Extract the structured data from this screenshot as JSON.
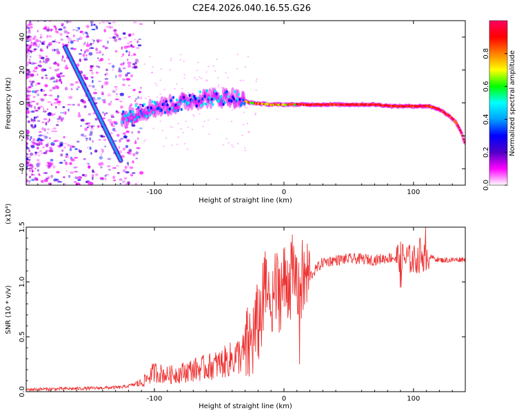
{
  "title": "C2E4.2026.040.16.55.G26",
  "chart_data": [
    {
      "type": "heatmap",
      "name": "spectrogram",
      "xlabel": "Height of straight line (km)",
      "ylabel": "Frequency (Hz)",
      "xlim": [
        -199,
        140
      ],
      "ylim": [
        -50,
        50
      ],
      "xticks": [
        "-100",
        "0",
        "100"
      ],
      "xtick_values": [
        -100,
        0,
        100
      ],
      "yticks": [
        "40",
        "20",
        "0",
        "-20",
        "-40"
      ],
      "ytick_values": [
        40,
        20,
        0,
        -20,
        -40
      ],
      "colorbar": {
        "label": "Normalized spectral amplitude",
        "range": [
          0,
          1
        ],
        "ticks": [
          "0.0",
          "0.2",
          "0.4",
          "0.6",
          "0.8"
        ],
        "tick_values": [
          0.0,
          0.2,
          0.4,
          0.6,
          0.8
        ],
        "colors": [
          "#ffffff",
          "#ff00ff",
          "#5000c8",
          "#0000ff",
          "#00a0ff",
          "#00ffff",
          "#00ff00",
          "#ffff00",
          "#ff8000",
          "#ff0000",
          "#ff0060"
        ]
      },
      "diagonal_line": {
        "from": [
          -169,
          34
        ],
        "to": [
          -126,
          -35
        ]
      },
      "main_trace": [
        [
          -125,
          -10
        ],
        [
          -115,
          -6
        ],
        [
          -100,
          -3
        ],
        [
          -85,
          -1
        ],
        [
          -70,
          2
        ],
        [
          -60,
          3
        ],
        [
          -50,
          3
        ],
        [
          -42,
          4
        ],
        [
          -35,
          2
        ],
        [
          -25,
          0
        ],
        [
          -10,
          -1
        ],
        [
          0,
          -1
        ],
        [
          20,
          -1
        ],
        [
          40,
          -1
        ],
        [
          55,
          -1
        ],
        [
          70,
          -1
        ],
        [
          85,
          -2
        ],
        [
          100,
          -2
        ],
        [
          112,
          -2
        ],
        [
          120,
          -4
        ],
        [
          128,
          -8
        ],
        [
          133,
          -12
        ],
        [
          137,
          -18
        ],
        [
          140,
          -25
        ]
      ]
    },
    {
      "type": "line",
      "name": "snr",
      "xlabel": "Height of straight line (km)",
      "ylabel": "SNR (10 * v/v)",
      "y_multiplier": "(x10⁴)",
      "xlim": [
        -199,
        140
      ],
      "ylim": [
        0,
        1.5
      ],
      "xticks": [
        "-100",
        "0",
        "100"
      ],
      "xtick_values": [
        -100,
        0,
        100
      ],
      "yticks": [
        "0.0",
        "0.5",
        "1.0",
        "1.5"
      ],
      "ytick_values": [
        0.0,
        0.5,
        1.0,
        1.5
      ],
      "color": "#ee3333",
      "envelope": [
        [
          -199,
          0.02
        ],
        [
          -150,
          0.03
        ],
        [
          -125,
          0.04
        ],
        [
          -110,
          0.08
        ],
        [
          -100,
          0.18
        ],
        [
          -90,
          0.15
        ],
        [
          -80,
          0.17
        ],
        [
          -70,
          0.2
        ],
        [
          -60,
          0.22
        ],
        [
          -50,
          0.25
        ],
        [
          -40,
          0.3
        ],
        [
          -30,
          0.36
        ],
        [
          -25,
          0.45
        ],
        [
          -20,
          0.62
        ],
        [
          -15,
          0.85
        ],
        [
          -10,
          0.9
        ],
        [
          -5,
          0.92
        ],
        [
          0,
          0.98
        ],
        [
          5,
          1.05
        ],
        [
          10,
          1.0
        ],
        [
          15,
          1.0
        ],
        [
          20,
          1.05
        ],
        [
          25,
          1.12
        ],
        [
          30,
          1.18
        ],
        [
          40,
          1.2
        ],
        [
          50,
          1.21
        ],
        [
          60,
          1.21
        ],
        [
          70,
          1.2
        ],
        [
          80,
          1.22
        ],
        [
          90,
          1.23
        ],
        [
          100,
          1.2
        ],
        [
          110,
          1.24
        ],
        [
          120,
          1.2
        ],
        [
          130,
          1.2
        ],
        [
          140,
          1.21
        ]
      ]
    }
  ]
}
